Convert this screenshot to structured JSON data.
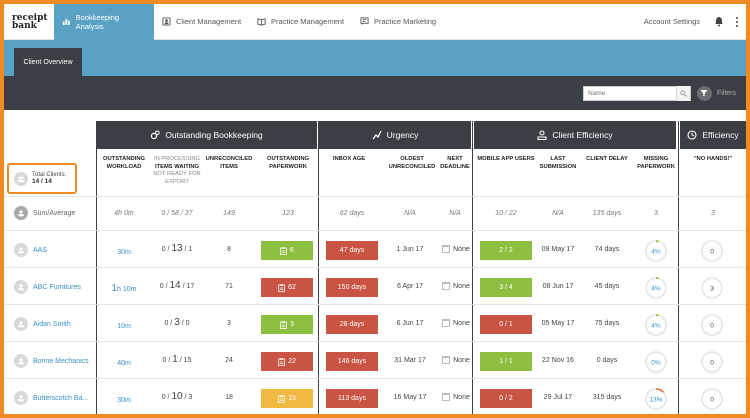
{
  "logo": {
    "line1": "receipt",
    "line2": "bank"
  },
  "nav": {
    "tabs": [
      {
        "label": "Bookkeeping Analysis",
        "icon": "chart-icon"
      },
      {
        "label": "Client Management",
        "icon": "clients-icon"
      },
      {
        "label": "Practice Management",
        "icon": "book-icon"
      },
      {
        "label": "Practice Marketing",
        "icon": "marketing-icon"
      }
    ],
    "account": "Account Settings"
  },
  "subtab": "Client Overview",
  "toolbar": {
    "search_placeholder": "Name",
    "filters": "Filters"
  },
  "groups": {
    "bookkeeping": "Outstanding Bookkeeping",
    "urgency": "Urgency",
    "client_efficiency": "Client Efficiency",
    "efficiency": "Efficiency"
  },
  "columns": {
    "workload": "OUTSTANDING WORKLOAD",
    "processing_1": "IN PROCESSING",
    "processing_2": "ITEMS WAITING",
    "processing_3": "NOT READY FOR EXPORT",
    "unreconciled": "UNRECONCILED ITEMS",
    "paperwork": "OUTSTANDING PAPERWORK",
    "inbox_age": "INBOX AGE",
    "oldest": "OLDEST UNRECONCILED",
    "next_deadline": "NEXT DEADLINE",
    "mobile": "MOBILE APP USERS",
    "last_submission": "LAST SUBMISSION",
    "client_delay": "CLIENT DELAY",
    "missing": "MISSING PAPERWORK",
    "no_hands": "\"NO HANDS!\""
  },
  "total": {
    "label": "Total Clients:",
    "value": "14 / 14"
  },
  "summary": {
    "name": "Sum/Average",
    "workload": "4h 0m",
    "processing": "0 / 58 / 37",
    "unreconciled": "149",
    "paperwork": "123",
    "inbox_age": "62 days",
    "oldest": "N/A",
    "next_deadline": "N/A",
    "mobile": "10 / 22",
    "last_submission": "N/A",
    "client_delay": "135 days",
    "missing": "3",
    "no_hands": "3"
  },
  "rows": [
    {
      "name": "AAS",
      "workload_big": "",
      "workload": "30m",
      "proc_a": "0 /",
      "proc_b": "13",
      "proc_c": "/ 1",
      "unreconciled": "8",
      "paperwork": "6",
      "paperwork_color": "#8cbf3f",
      "inbox_age": "47 days",
      "oldest": "1 Jun 17",
      "deadline": "None",
      "mobile": "2 / 2",
      "mobile_color": "#8cbf3f",
      "last_submission": "09 May 17",
      "client_delay": "74 days",
      "missing": "4%",
      "missing_pct": 4,
      "no_hands": "0"
    },
    {
      "name": "ABC Furnitures",
      "workload_big": "1",
      "workload": "h 10m",
      "proc_a": "0 /",
      "proc_b": "14",
      "proc_c": "/ 17",
      "unreconciled": "71",
      "paperwork": "62",
      "paperwork_color": "#c95443",
      "inbox_age": "150 days",
      "oldest": "6 Apr 17",
      "deadline": "None",
      "mobile": "3 / 4",
      "mobile_color": "#8cbf3f",
      "last_submission": "08 Jun 17",
      "client_delay": "45 days",
      "missing": "4%",
      "missing_pct": 4,
      "no_hands": "3"
    },
    {
      "name": "Aidan Smith",
      "workload_big": "",
      "workload": "10m",
      "proc_a": "0 /",
      "proc_b": "3",
      "proc_c": "/ 0",
      "unreconciled": "3",
      "paperwork": "3",
      "paperwork_color": "#8cbf3f",
      "inbox_age": "28 days",
      "oldest": "6 Jun 17",
      "deadline": "None",
      "mobile": "0 / 1",
      "mobile_color": "#c95443",
      "last_submission": "05 May 17",
      "client_delay": "75 days",
      "missing": "4%",
      "missing_pct": 4,
      "no_hands": "0"
    },
    {
      "name": "Bonne Mechanics",
      "workload_big": "",
      "workload": "40m",
      "proc_a": "0 /",
      "proc_b": "1",
      "proc_c": "/ 15",
      "unreconciled": "24",
      "paperwork": "22",
      "paperwork_color": "#c95443",
      "inbox_age": "146 days",
      "oldest": "31 Mar 17",
      "deadline": "None",
      "mobile": "1 / 1",
      "mobile_color": "#8cbf3f",
      "last_submission": "22 Nov 16",
      "client_delay": "0 days",
      "missing": "0%",
      "missing_pct": 0,
      "no_hands": "0"
    },
    {
      "name": "Butterscotch Ba...",
      "workload_big": "",
      "workload": "30m",
      "proc_a": "0 /",
      "proc_b": "10",
      "proc_c": "/ 3",
      "unreconciled": "18",
      "paperwork": "15",
      "paperwork_color": "#f0b942",
      "inbox_age": "113 days",
      "oldest": "16 May 17",
      "deadline": "None",
      "mobile": "0 / 2",
      "mobile_color": "#c95443",
      "last_submission": "29 Jul 17",
      "client_delay": "315 days",
      "missing": "13%",
      "missing_pct": 13,
      "no_hands": "0"
    }
  ]
}
